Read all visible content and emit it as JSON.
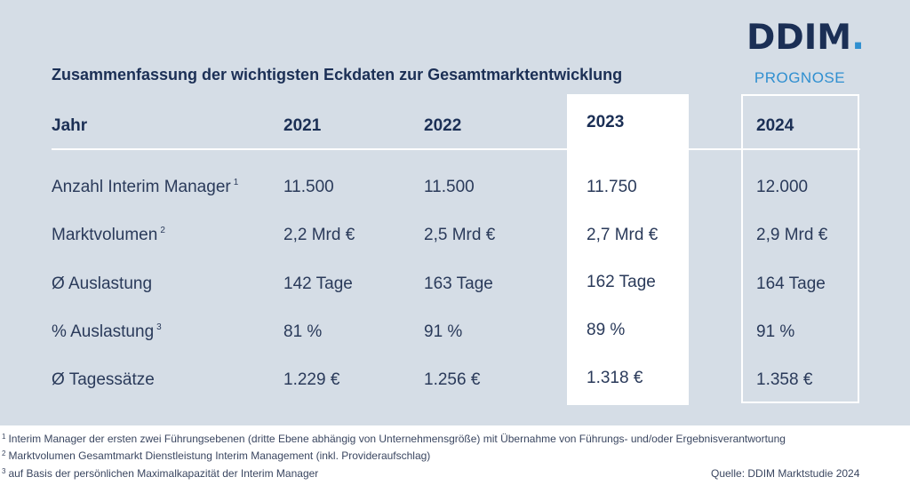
{
  "logo": {
    "text": "DDIM",
    "dot": "."
  },
  "title": "Zusammenfassung der wichtigsten Eckdaten zur Gesamtmarktentwicklung",
  "prognose_label": "PROGNOSE",
  "table": {
    "headers": [
      "Jahr",
      "2021",
      "2022",
      "2023",
      "2024"
    ],
    "rows": [
      {
        "label": "Anzahl Interim Manager",
        "note": "1",
        "values": [
          "11.500",
          "11.500",
          "11.750",
          "12.000"
        ]
      },
      {
        "label": "Marktvolumen",
        "note": "2",
        "values": [
          "2,2 Mrd €",
          "2,5 Mrd €",
          "2,7 Mrd €",
          "2,9 Mrd €"
        ]
      },
      {
        "label": "Ø Auslastung",
        "note": "",
        "values": [
          "142 Tage",
          "163 Tage",
          "162 Tage",
          "164 Tage"
        ]
      },
      {
        "label": "% Auslastung",
        "note": "3",
        "values": [
          "81 %",
          "91 %",
          "89 %",
          "91 %"
        ]
      },
      {
        "label": "Ø Tagessätze",
        "note": "",
        "values": [
          "1.229 €",
          "1.256 €",
          "1.318 €",
          "1.358 €"
        ]
      }
    ]
  },
  "footnotes": [
    {
      "mark": "1",
      "text": "Interim Manager der ersten zwei Führungsebenen (dritte Ebene abhängig von Unternehmensgröße) mit Übernahme von Führungs- und/oder Ergebnisverantwortung"
    },
    {
      "mark": "2",
      "text": "Marktvolumen Gesamtmarkt Dienstleistung Interim Management (inkl. Provideraufschlag)"
    },
    {
      "mark": "3",
      "text": "auf Basis der persönlichen Maximalkapazität der Interim Manager"
    }
  ],
  "source": "Quelle: DDIM Marktstudie 2024",
  "colors": {
    "navy": "#1b2f55",
    "accent": "#2f8fd0",
    "panel": "#d5dde6"
  }
}
